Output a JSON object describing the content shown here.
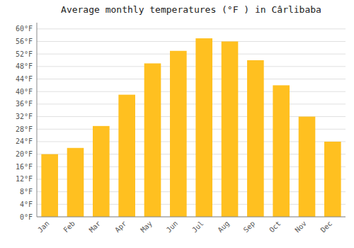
{
  "chart_data": {
    "type": "bar",
    "title": "Average monthly temperatures (°F ) in Cârlibaba",
    "categories": [
      "Jan",
      "Feb",
      "Mar",
      "Apr",
      "May",
      "Jun",
      "Jul",
      "Aug",
      "Sep",
      "Oct",
      "Nov",
      "Dec"
    ],
    "values": [
      20,
      22,
      29,
      39,
      49,
      53,
      57,
      56,
      50,
      42,
      32,
      24
    ],
    "color": "#FFC020",
    "ylim": [
      0,
      62
    ],
    "yticks": [
      {
        "value": 0,
        "label": "0°F"
      },
      {
        "value": 4,
        "label": "4°F"
      },
      {
        "value": 8,
        "label": "8°F"
      },
      {
        "value": 12,
        "label": "12°F"
      },
      {
        "value": 16,
        "label": "16°F"
      },
      {
        "value": 20,
        "label": "20°F"
      },
      {
        "value": 24,
        "label": "24°F"
      },
      {
        "value": 28,
        "label": "28°F"
      },
      {
        "value": 32,
        "label": "32°F"
      },
      {
        "value": 36,
        "label": "36°F"
      },
      {
        "value": 40,
        "label": "40°F"
      },
      {
        "value": 44,
        "label": "44°F"
      },
      {
        "value": 48,
        "label": "48°F"
      },
      {
        "value": 52,
        "label": "52°F"
      },
      {
        "value": 56,
        "label": "56°F"
      },
      {
        "value": 60,
        "label": "60°F"
      }
    ],
    "grid": true
  }
}
